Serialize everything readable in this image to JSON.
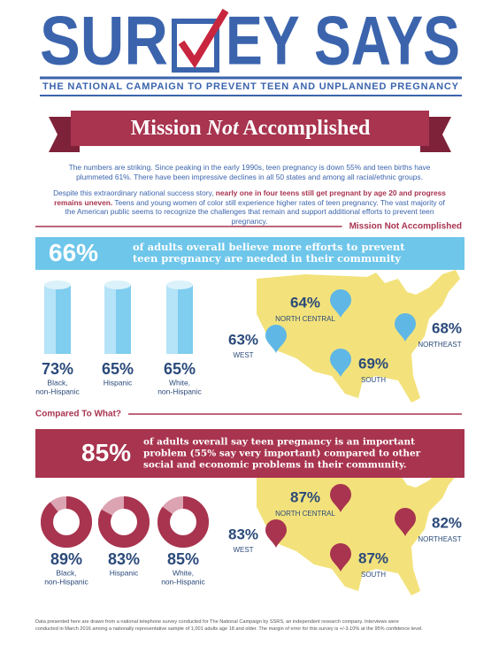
{
  "header": {
    "title_left": "SUR",
    "title_right": "EY SAYS",
    "subtitle": "THE NATIONAL CAMPAIGN TO PREVENT TEEN AND UNPLANNED PREGNANCY"
  },
  "banner": {
    "before": "Mission ",
    "emphasis": "Not",
    "after": " Accomplished"
  },
  "intro": {
    "p1": "The numbers are striking.  Since peaking in the early 1990s, teen pregnancy is down 55% and teen births have plummeted 61%.  There have been impressive declines in all 50 states and among all racial/ethnic groups.",
    "p2_before": "Despite this extraordinary national success story, ",
    "p2_bold": "nearly one in four teens still get pregnant by age 20 and progress remains uneven.",
    "p2_after": "  Teens and young women of color still experience higher rates of teen pregnancy.  The vast majority of the American public seems to recognize the challenges that remain and support additional efforts to prevent teen pregnancy."
  },
  "section1": {
    "heading": "Mission Not Accomplished",
    "stat": "66%",
    "statement": [
      "of adults overall believe more efforts to prevent",
      "teen pregnancy are needed in their community"
    ],
    "groups": [
      {
        "value": "73%",
        "label": [
          "Black,",
          "non-Hispanic"
        ]
      },
      {
        "value": "65%",
        "label": [
          "Hispanic"
        ]
      },
      {
        "value": "65%",
        "label": [
          "White,",
          "non-Hispanic"
        ]
      }
    ],
    "regions": [
      {
        "value": "64%",
        "name": "NORTH CENTRAL"
      },
      {
        "value": "63%",
        "name": "WEST"
      },
      {
        "value": "69%",
        "name": "SOUTH"
      },
      {
        "value": "68%",
        "name": "NORTHEAST"
      }
    ]
  },
  "section2": {
    "heading": "Compared To What?",
    "stat": "85%",
    "statement": [
      "of adults overall say teen pregnancy is an important",
      "problem (55% say very important) compared to other",
      "social and economic problems in their community."
    ],
    "groups": [
      {
        "value": {
          "value": 89,
          "label": "89%"
        },
        "label": [
          "Black,",
          "non-Hispanic"
        ]
      },
      {
        "value": {
          "value": 83,
          "label": "83%"
        },
        "label": [
          "Hispanic"
        ]
      },
      {
        "value": {
          "value": 85,
          "label": "85%"
        },
        "label": [
          "White,",
          "non-Hispanic"
        ]
      }
    ],
    "regions": [
      {
        "value": "87%",
        "name": "NORTH CENTRAL"
      },
      {
        "value": "83%",
        "name": "WEST"
      },
      {
        "value": "87%",
        "name": "SOUTH"
      },
      {
        "value": "82%",
        "name": "NORTHEAST"
      }
    ]
  },
  "footnote": [
    "Data presented here are drawn from a national telephone survey conducted for The National Campaign by SSRS, an independent research company. Interviews were",
    "conducted in March 2016 among a nationally representative sample of 1,001 adults age 18 and older.  The margin of error for this survey is +/-3.10% at the 95% confidence level."
  ]
}
